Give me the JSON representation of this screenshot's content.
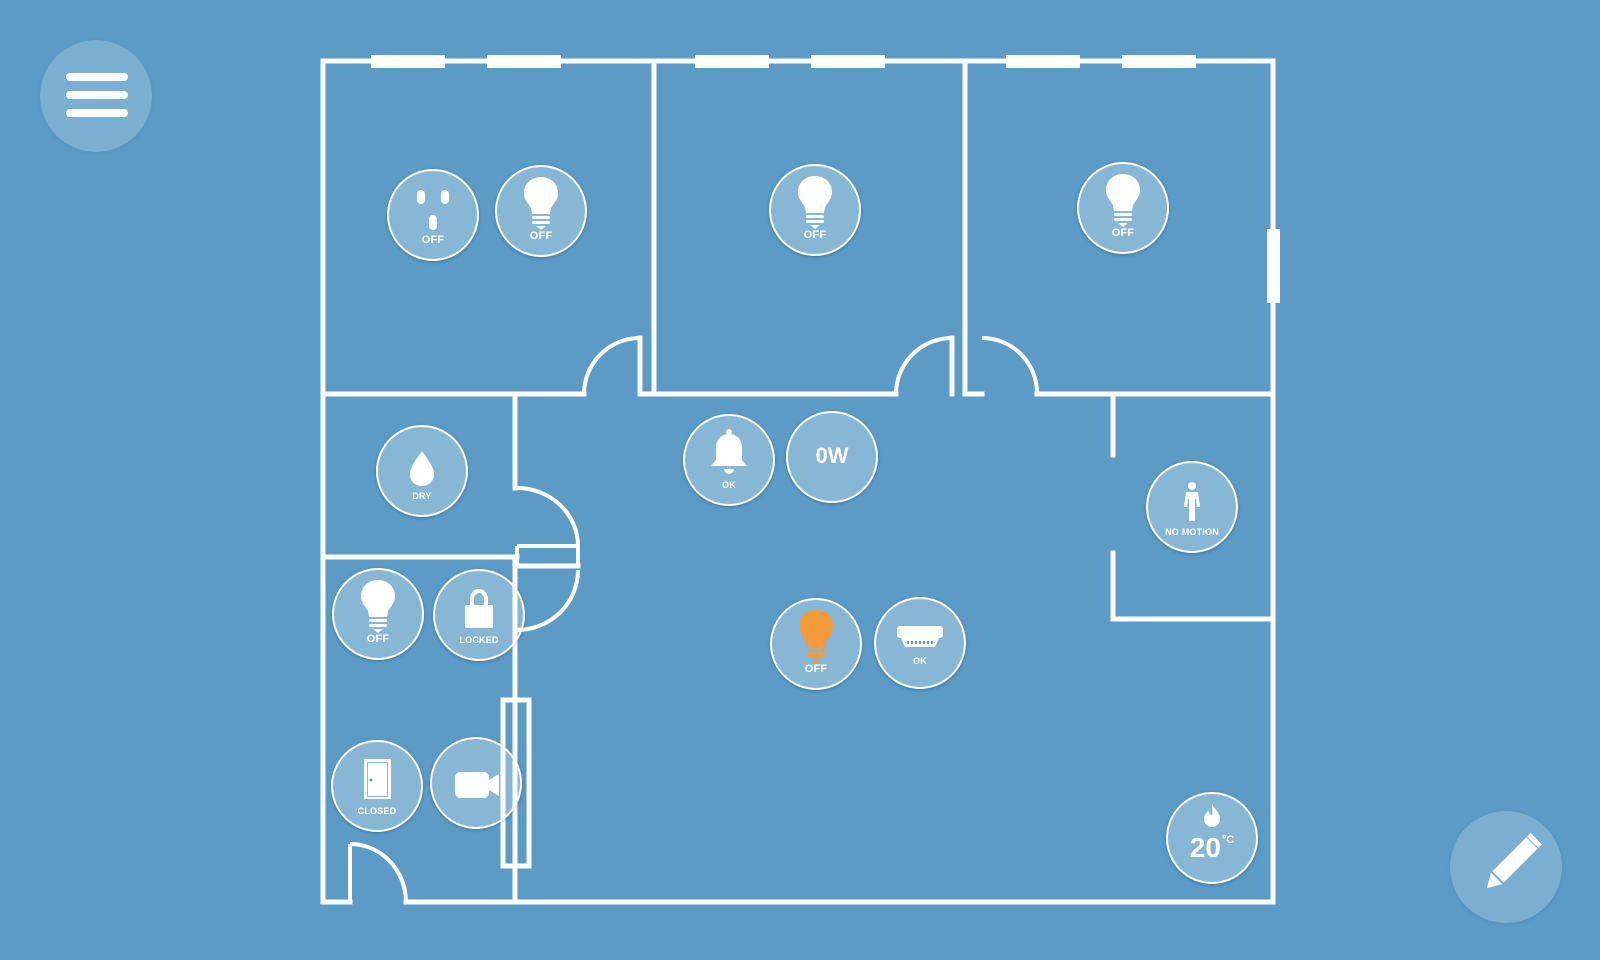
{
  "app": {
    "accent_color": "#5b9bc6",
    "active_color": "#f49a3a"
  },
  "toolbar": {
    "menu_icon": "hamburger-icon",
    "edit_icon": "pencil-icon"
  },
  "devices": {
    "outlet_bedroom1": {
      "icon": "outlet-icon",
      "status": "OFF"
    },
    "light_bedroom1": {
      "icon": "lightbulb-icon",
      "status": "OFF"
    },
    "light_bedroom2": {
      "icon": "lightbulb-icon",
      "status": "OFF"
    },
    "light_bedroom3": {
      "icon": "lightbulb-icon",
      "status": "OFF"
    },
    "water_sensor": {
      "icon": "water-drop-icon",
      "status": "DRY"
    },
    "alarm": {
      "icon": "bell-icon",
      "status": "OK"
    },
    "power_meter": {
      "value": "0W"
    },
    "motion_sensor": {
      "icon": "person-icon",
      "status": "NO MOTION"
    },
    "light_bathroom": {
      "icon": "lightbulb-icon",
      "status": "OFF"
    },
    "door_lock": {
      "icon": "padlock-icon",
      "status": "LOCKED"
    },
    "light_living": {
      "icon": "lightbulb-icon",
      "status": "OFF",
      "color": "#f49a3a"
    },
    "smoke_detector": {
      "icon": "smoke-detector-icon",
      "status": "OK"
    },
    "door_sensor": {
      "icon": "door-icon",
      "status": "CLOSED"
    },
    "camera": {
      "icon": "video-camera-icon"
    },
    "thermostat": {
      "icon": "flame-icon",
      "value": "20",
      "unit": "°C"
    }
  }
}
